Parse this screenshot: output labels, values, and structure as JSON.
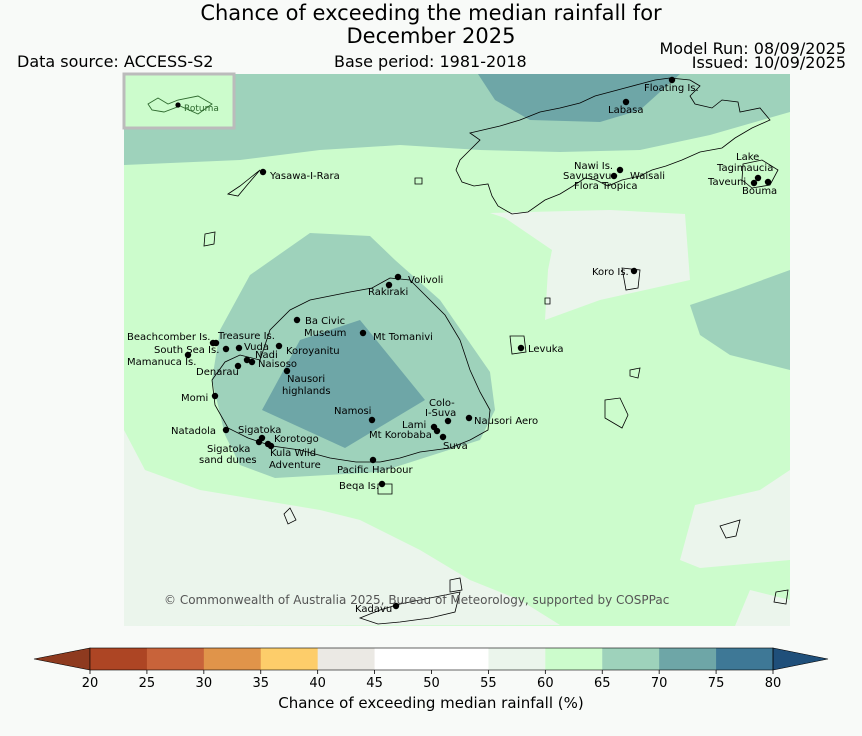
{
  "title_line1": "Chance of exceeding the median rainfall for",
  "title_line2": "December 2025",
  "data_source": "Data source: ACCESS-S2",
  "base_period": "Base period: 1981-2018",
  "model_run": "Model Run: 08/09/2025",
  "issued": "Issued: 10/09/2025",
  "copyright": "© Commonwealth of Australia 2025, Bureau of Meteorology, supported by COSPPac",
  "inset_label": "Rotuma",
  "colors": {
    "c55_60": "#ebf5ec",
    "c60_65": "#ccfccc",
    "c65_70": "#9ed2bb",
    "c70_75": "#6ea6a7"
  },
  "places": [
    "Floating Is.",
    "Labasa",
    "Yasawa-I-Rara",
    "Nawi Is.",
    "Savusavu",
    "Waisali",
    "Flora Tropica",
    "Lake",
    "Tagimaucia",
    "Taveuni",
    "Bouma",
    "Koro Is.",
    "Volivoli",
    "Rakiraki",
    "Ba Civic",
    "Museum",
    "Mt Tomanivi",
    "Beachcomber Is.",
    "Treasure Is.",
    "South Sea Is.",
    "Vuda",
    "Koroyanitu",
    "Nadi",
    "Mamanuca Is.",
    "Naisoso",
    "Denarau",
    "Nausori",
    "highlands",
    "Levuka",
    "Momi",
    "Namosi",
    "Colo-",
    "I-Suva",
    "Nausori Aero",
    "Lami",
    "Mt Korobaba",
    "Suva",
    "Natadola",
    "Sigatoka",
    "Korotogo",
    "Sigatoka",
    "sand dunes",
    "Kula Wild",
    "Adventure",
    "Pacific Harbour",
    "Beqa Is.",
    "Kadavu"
  ],
  "colorbar": {
    "title": "Chance of exceeding median rainfall (%)",
    "ticks": [
      "20",
      "25",
      "30",
      "35",
      "40",
      "45",
      "50",
      "55",
      "60",
      "65",
      "70",
      "75",
      "80"
    ],
    "under_color": "#8e3a1f",
    "over_color": "#1f4f7a",
    "bins": [
      "#ad4524",
      "#c8633a",
      "#e0944a",
      "#fdcd6a",
      "#ebe9e4",
      "#ffffff",
      "#ffffff",
      "#ebf5ec",
      "#ccfccc",
      "#9ed2bb",
      "#6ea6a7",
      "#3e7896"
    ]
  }
}
